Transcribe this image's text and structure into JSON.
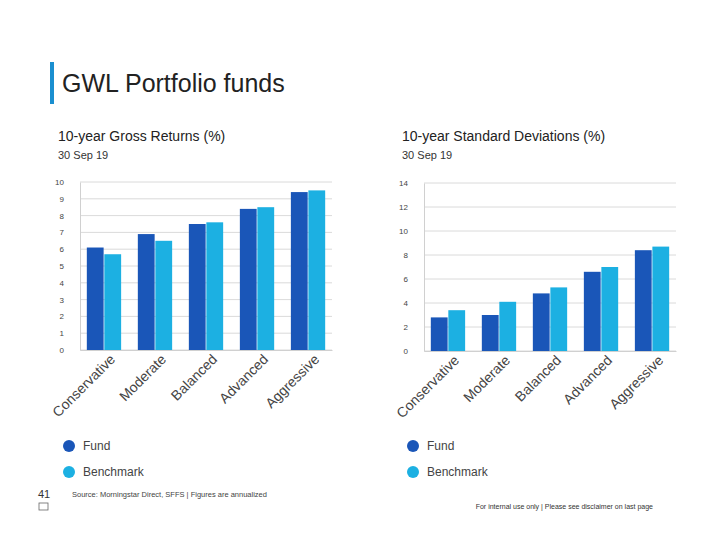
{
  "page_title": "GWL Portfolio funds",
  "source": "Source: Morningstar Direct, SFFS  |  Figures are annualized",
  "disclaimer": "For internal use only  |  Please see disclaimer on last page",
  "page_number": "41",
  "chart_data": [
    {
      "type": "bar",
      "title": "10-year Gross Returns (%)",
      "subtitle": "30 Sep 19",
      "categories": [
        "Conservative",
        "Moderate",
        "Balanced",
        "Advanced",
        "Aggressive"
      ],
      "series": [
        {
          "name": "Fund",
          "color": "#1a56b8",
          "values": [
            6.1,
            6.9,
            7.5,
            8.4,
            9.4
          ]
        },
        {
          "name": "Benchmark",
          "color": "#1cb0e2",
          "values": [
            5.7,
            6.5,
            7.6,
            8.5,
            9.5
          ]
        }
      ],
      "ylim": [
        0,
        10
      ],
      "yticks": [
        0,
        1,
        2,
        3,
        4,
        5,
        6,
        7,
        8,
        9,
        10
      ],
      "grid": true,
      "legend": "bottom"
    },
    {
      "type": "bar",
      "title": "10-year Standard Deviations (%)",
      "subtitle": "30 Sep 19",
      "categories": [
        "Conservative",
        "Moderate",
        "Balanced",
        "Advanced",
        "Aggressive"
      ],
      "series": [
        {
          "name": "Fund",
          "color": "#1a56b8",
          "values": [
            2.8,
            3.0,
            4.8,
            6.6,
            8.4
          ]
        },
        {
          "name": "Benchmark",
          "color": "#1cb0e2",
          "values": [
            3.4,
            4.1,
            5.3,
            7.0,
            8.7
          ]
        }
      ],
      "ylim": [
        0,
        14
      ],
      "yticks": [
        0,
        2,
        4,
        6,
        8,
        10,
        12,
        14
      ],
      "grid": true,
      "legend": "bottom"
    }
  ]
}
